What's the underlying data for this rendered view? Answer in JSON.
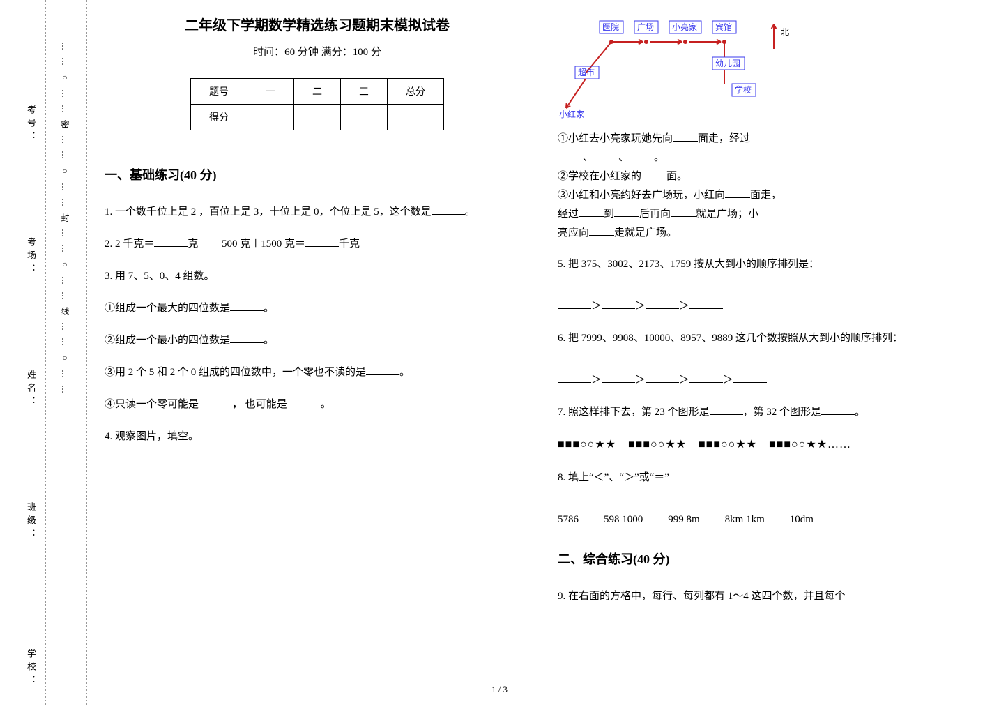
{
  "binding": {
    "labels": [
      "学校：",
      "班级：",
      "姓名：",
      "考场：",
      "考号："
    ],
    "line_text": "……○……密……○……封……○……线……○……",
    "circle_glyph": "○"
  },
  "header": {
    "title": "二年级下学期数学精选练习题期末模拟试卷",
    "subtitle": "时间：60 分钟   满分：100 分"
  },
  "score_table": {
    "row1": [
      "题号",
      "一",
      "二",
      "三",
      "总分"
    ],
    "row2_label": "得分"
  },
  "section1": {
    "heading": "一、基础练习(40 分)",
    "q1_a": "1.  一个数千位上是 2 ，百位上是 3，十位上是 0，个位上是 5，这个数是",
    "q1_b": "。",
    "q2_a": "2.  2 千克＝",
    "q2_b": "克",
    "q2_c": "500 克＋1500 克＝",
    "q2_d": "千克",
    "q3": "3.  用 7、5、0、4 组数。",
    "q3_1a": "①组成一个最大的四位数是",
    "q3_1b": "。",
    "q3_2a": "②组成一个最小的四位数是",
    "q3_2b": "。",
    "q3_3a": "③用 2 个 5 和 2 个 0 组成的四位数中，一个零也不读的是",
    "q3_3b": "。",
    "q3_4a": "④只读一个零可能是",
    "q3_4b": "， 也可能是",
    "q3_4c": "。",
    "q4": "4.  观察图片，填空。"
  },
  "map": {
    "labels": {
      "hospital": "医院",
      "square": "广场",
      "liang_home": "小亮家",
      "hotel": "宾馆",
      "north": "北",
      "kindergarten": "幼儿园",
      "supermarket": "超市",
      "school": "学校",
      "hong_home": "小红家"
    },
    "line_color": "#c62020",
    "text_color": "#3a3aee",
    "bg_color": "#ffffff",
    "font_size": 12
  },
  "q4sub": {
    "l1a": "①小红去小亮家玩她先向",
    "l1b": "面走，经过",
    "l2": "、",
    "l2end": "。",
    "l3a": "②学校在小红家的",
    "l3b": "面。",
    "l4a": "③小红和小亮约好去广场玩，小红向",
    "l4b": "面走，",
    "l5a": "经过",
    "l5b": "到",
    "l5c": "后再向",
    "l5d": "就是广场；小",
    "l6a": "亮应向",
    "l6b": "走就是广场。"
  },
  "q5": {
    "text": "5.  把 375、3002、2173、1759 按从大到小的顺序排列是：",
    "gt": "＞"
  },
  "q6": {
    "text": "6.  把 7999、9908、10000、8957、9889 这几个数按照从大到小的顺序排列：",
    "gt": "＞"
  },
  "q7": {
    "a": "7.  照这样排下去，第 23 个图形是",
    "b": "，第 32 个图形是",
    "c": "。",
    "pattern": "■■■○○★★　■■■○○★★　■■■○○★★　■■■○○★★……"
  },
  "q8": {
    "title": "8.  填上“＜”、“＞”或“＝”",
    "p1a": "5786",
    "p1b": "598  1000",
    "p1c": "999  8m",
    "p1d": "8km  1km",
    "p1e": "10dm"
  },
  "section2": {
    "heading": "二、综合练习(40 分)",
    "q9": "9.  在右面的方格中，每行、每列都有 1～4 这四个数，并且每个"
  },
  "pagenum": "1 / 3"
}
